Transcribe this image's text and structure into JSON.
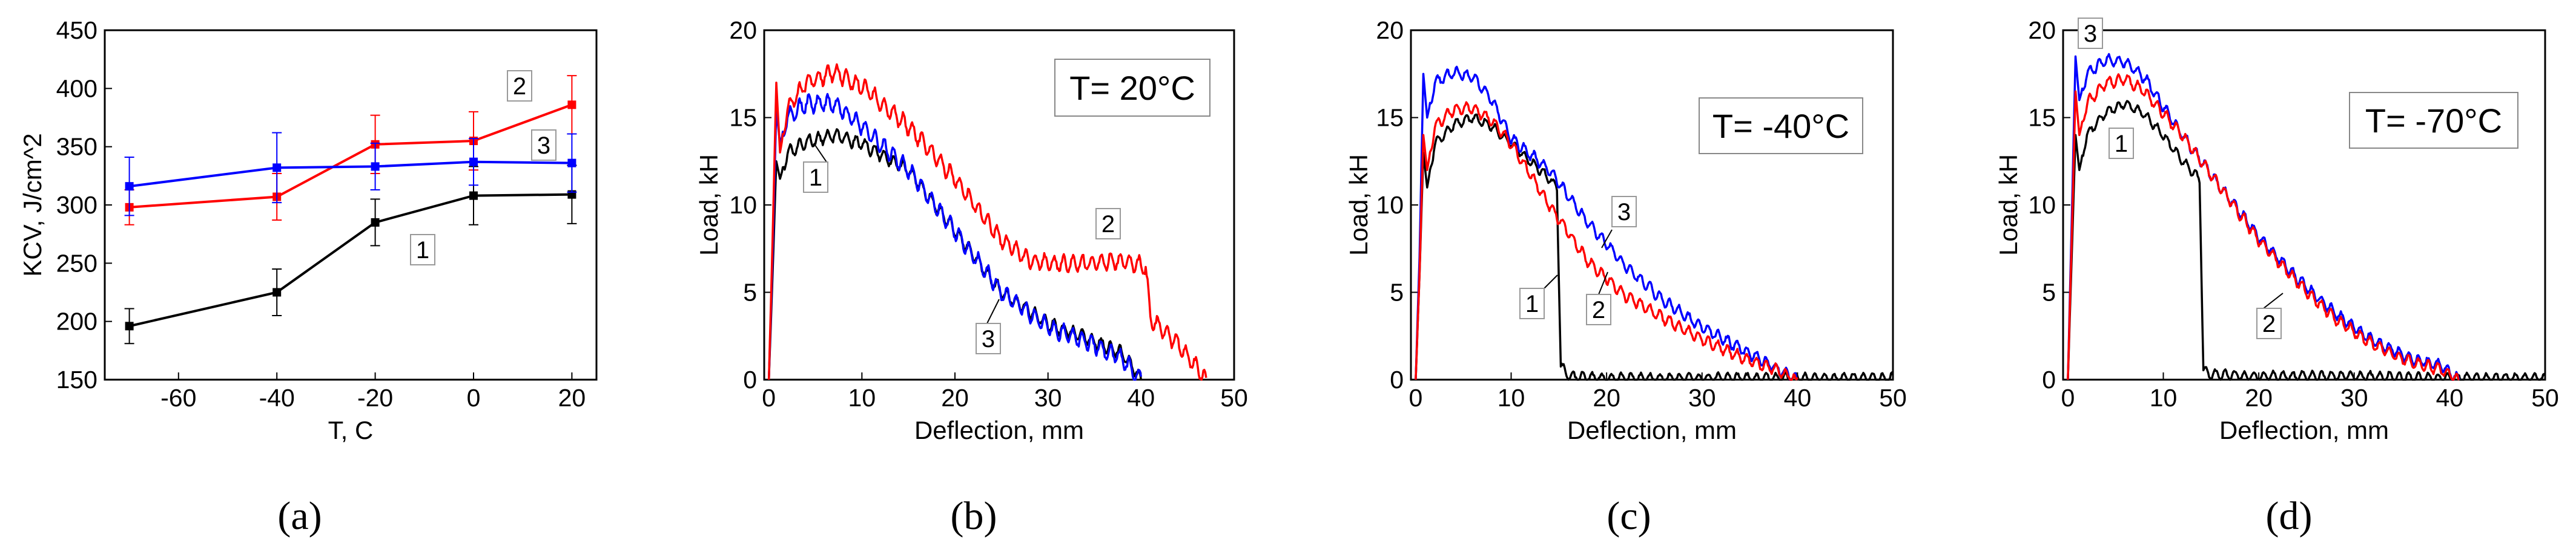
{
  "colors": {
    "s1": "#000000",
    "s2": "#ff0000",
    "s3": "#0000ff"
  },
  "chart_data": [
    {
      "id": "a",
      "type": "line",
      "panel_label": "(a)",
      "xlabel": "T, C",
      "ylabel": "KCV, J/cm^2",
      "xlim": [
        -75,
        25
      ],
      "ylim": [
        150,
        450
      ],
      "xticks": [
        -60,
        -40,
        -20,
        0,
        20
      ],
      "yticks": [
        150,
        200,
        250,
        300,
        350,
        400,
        450
      ],
      "series": [
        {
          "name": "1",
          "x": [
            -70,
            -40,
            -20,
            0,
            20
          ],
          "values": [
            196,
            225,
            285,
            308,
            309
          ],
          "err": [
            15,
            20,
            20,
            25,
            25
          ]
        },
        {
          "name": "2",
          "x": [
            -70,
            -40,
            -20,
            0,
            20
          ],
          "values": [
            298,
            307,
            352,
            355,
            386
          ],
          "err": [
            15,
            20,
            25,
            25,
            25
          ]
        },
        {
          "name": "3",
          "x": [
            -70,
            -40,
            -20,
            0,
            20
          ],
          "values": [
            316,
            332,
            333,
            337,
            336
          ],
          "err": [
            25,
            30,
            20,
            20,
            25
          ]
        }
      ],
      "annotations": [
        "2",
        "3",
        "1"
      ]
    },
    {
      "id": "b",
      "type": "line",
      "panel_label": "(b)",
      "title": "T= 20°C",
      "xlabel": "Deflection, mm",
      "ylabel": "Load, kH",
      "xlim": [
        -0.5,
        50
      ],
      "ylim": [
        0,
        20
      ],
      "xticks": [
        0,
        10,
        20,
        30,
        40,
        50
      ],
      "yticks": [
        0,
        5,
        10,
        15,
        20
      ],
      "series": [
        {
          "name": "1",
          "x": [
            0,
            0.4,
            0.8,
            1.2,
            2,
            4,
            7,
            10,
            15,
            20,
            25,
            30,
            35,
            38,
            40
          ],
          "values": [
            0,
            6,
            12.5,
            11.5,
            13,
            13.6,
            14,
            13.5,
            12,
            8.5,
            5,
            3.2,
            2.2,
            1.5,
            0
          ],
          "noise": 0.35
        },
        {
          "name": "2",
          "x": [
            0,
            0.4,
            0.8,
            1.2,
            2,
            4,
            7,
            10,
            15,
            20,
            25,
            28,
            32,
            38,
            40.5,
            41,
            44,
            47
          ],
          "values": [
            0,
            8,
            17,
            13,
            15.5,
            17,
            17.6,
            16.8,
            14.5,
            11.5,
            8,
            6.8,
            6.6,
            6.8,
            6.5,
            3.5,
            2,
            0
          ],
          "noise": 0.45
        },
        {
          "name": "3",
          "x": [
            0,
            0.4,
            0.8,
            1.2,
            2,
            4,
            7,
            10,
            15,
            20,
            25,
            30,
            35,
            38,
            40
          ],
          "values": [
            0,
            7,
            15.5,
            13.5,
            15,
            15.8,
            15.8,
            14.5,
            12,
            8.5,
            5,
            3,
            2,
            1.2,
            0
          ],
          "noise": 0.45
        }
      ],
      "annotations": [
        "1",
        "2",
        "3"
      ]
    },
    {
      "id": "c",
      "type": "line",
      "panel_label": "(c)",
      "title": "T= -40°C",
      "xlabel": "Deflection, mm",
      "ylabel": "Load, kH",
      "xlim": [
        -0.5,
        50
      ],
      "ylim": [
        0,
        20
      ],
      "xticks": [
        0,
        10,
        20,
        30,
        40,
        50
      ],
      "yticks": [
        0,
        5,
        10,
        15,
        20
      ],
      "series": [
        {
          "name": "1",
          "x": [
            0,
            0.4,
            0.8,
            1.2,
            2,
            4,
            6,
            8,
            10,
            12,
            14,
            14.8,
            15.2,
            16,
            20,
            30,
            40,
            50
          ],
          "values": [
            0,
            6,
            13,
            11,
            13.5,
            14.6,
            15,
            14.5,
            13.5,
            12.5,
            11.5,
            11,
            0.8,
            0.2,
            0.1,
            0.1,
            0.1,
            0.1
          ],
          "noise": 0.25
        },
        {
          "name": "2",
          "x": [
            0,
            0.4,
            0.8,
            1.2,
            2,
            4,
            6,
            8,
            10,
            14,
            18,
            22,
            26,
            30,
            34,
            38,
            40
          ],
          "values": [
            0,
            6,
            14,
            12,
            14.5,
            15.5,
            15.5,
            14.8,
            13.5,
            10,
            6.8,
            4.8,
            3.5,
            2.3,
            1.3,
            0.5,
            0
          ],
          "noise": 0.3
        },
        {
          "name": "3",
          "x": [
            0,
            0.4,
            0.8,
            1.2,
            2,
            4,
            6,
            8,
            10,
            14,
            18,
            22,
            26,
            30,
            34,
            38,
            40
          ],
          "values": [
            0,
            7,
            17.5,
            15,
            17,
            17.6,
            17.3,
            16,
            13.8,
            12,
            9,
            6.5,
            4.5,
            3,
            1.8,
            0.6,
            0
          ],
          "noise": 0.3
        }
      ],
      "annotations": [
        "1",
        "2",
        "3"
      ]
    },
    {
      "id": "d",
      "type": "line",
      "panel_label": "(d)",
      "title": "T= -70°C",
      "xlabel": "Deflection, mm",
      "ylabel": "Load, kH",
      "xlim": [
        -0.5,
        50
      ],
      "ylim": [
        0,
        20
      ],
      "xticks": [
        0,
        10,
        20,
        30,
        40,
        50
      ],
      "yticks": [
        0,
        5,
        10,
        15,
        20
      ],
      "series": [
        {
          "name": "1",
          "x": [
            0,
            0.4,
            0.8,
            1.2,
            2,
            4,
            6,
            8,
            10,
            12,
            13.8,
            14.2,
            15,
            20,
            30,
            40,
            50
          ],
          "values": [
            0,
            7,
            14,
            12,
            14,
            15.3,
            15.8,
            15.2,
            14,
            12.5,
            11.5,
            0.5,
            0.3,
            0.2,
            0.2,
            0.1,
            0.1
          ],
          "noise": 0.25
        },
        {
          "name": "2",
          "x": [
            0,
            0.4,
            0.8,
            1.2,
            2,
            4,
            6,
            8,
            12,
            16,
            20,
            24,
            28,
            32,
            36,
            39,
            41
          ],
          "values": [
            0,
            8,
            16.5,
            14,
            15.8,
            17,
            17.2,
            16.5,
            14,
            11,
            8,
            5.6,
            3.5,
            2,
            1,
            0.6,
            0
          ],
          "noise": 0.3
        },
        {
          "name": "3",
          "x": [
            0,
            0.4,
            0.8,
            1.2,
            2,
            4,
            6,
            8,
            12,
            16,
            20,
            24,
            28,
            32,
            36,
            39,
            41
          ],
          "values": [
            0,
            9,
            18.5,
            16,
            17.5,
            18.3,
            18.2,
            17.3,
            14,
            11,
            8.2,
            5.8,
            3.8,
            2.2,
            1.2,
            0.8,
            0
          ],
          "noise": 0.3
        }
      ],
      "annotations": [
        "3",
        "1",
        "2"
      ]
    }
  ]
}
